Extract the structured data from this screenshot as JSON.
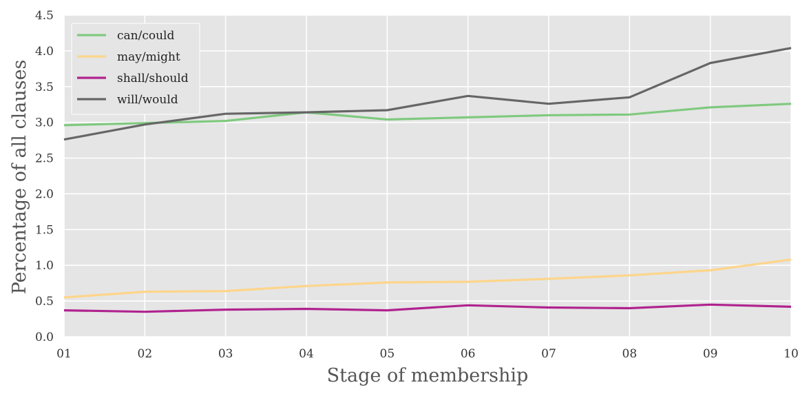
{
  "chart_data": {
    "type": "line",
    "title": "",
    "xlabel": "Stage of membership",
    "ylabel": "Percentage of all clauses",
    "x": [
      "01",
      "02",
      "03",
      "04",
      "05",
      "06",
      "07",
      "08",
      "09",
      "10"
    ],
    "yticks": [
      "0.0",
      "0.5",
      "1.0",
      "1.5",
      "2.0",
      "2.5",
      "3.0",
      "3.5",
      "4.0",
      "4.5"
    ],
    "ylim": [
      0,
      4.5
    ],
    "grid": true,
    "legend_position": "top-left",
    "background": "#e5e5e5",
    "series": [
      {
        "name": "can/could",
        "color": "#7fc97f",
        "values": [
          2.96,
          2.99,
          3.02,
          3.14,
          3.04,
          3.07,
          3.1,
          3.11,
          3.21,
          3.26
        ]
      },
      {
        "name": "may/might",
        "color": "#fdd58a",
        "values": [
          0.55,
          0.63,
          0.64,
          0.71,
          0.76,
          0.77,
          0.81,
          0.86,
          0.93,
          1.08
        ]
      },
      {
        "name": "shall/should",
        "color": "#b0238f",
        "values": [
          0.37,
          0.35,
          0.38,
          0.39,
          0.37,
          0.44,
          0.41,
          0.4,
          0.45,
          0.42
        ]
      },
      {
        "name": "will/would",
        "color": "#666666",
        "values": [
          2.76,
          2.97,
          3.12,
          3.14,
          3.17,
          3.37,
          3.26,
          3.35,
          3.83,
          4.04
        ]
      }
    ]
  }
}
